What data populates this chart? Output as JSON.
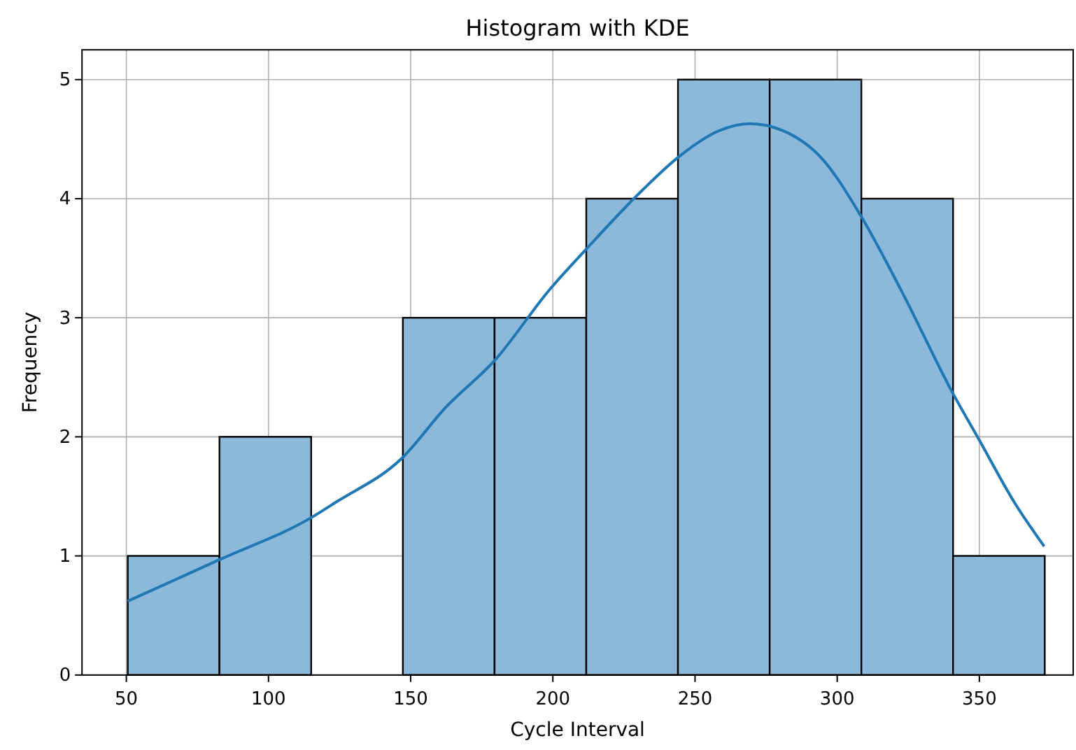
{
  "chart_data": {
    "type": "histogram",
    "title": "Histogram with KDE",
    "xlabel": "Cycle Interval",
    "ylabel": "Frequency",
    "bins": [
      50.5,
      82.75,
      115,
      147.25,
      179.5,
      211.75,
      244,
      276.25,
      308.5,
      340.75,
      373
    ],
    "series": [
      {
        "color": "#8cb8da",
        "values": [
          1,
          2,
          0,
          3,
          3,
          4,
          5,
          5,
          4,
          1
        ]
      },
      {
        "type": "line",
        "color": "#1f77b4",
        "x": [
          50.5,
          82.9,
          114.9,
          123.6,
          146.9,
          162.4,
          179.5,
          199,
          211.5,
          231,
          244.2,
          258.4,
          269.3,
          281,
          294.9,
          308.2,
          322.3,
          340.8,
          349.8,
          362.3,
          372.8
        ],
        "values": [
          0.62,
          0.97,
          1.32,
          1.45,
          1.82,
          2.25,
          2.64,
          3.24,
          3.57,
          4.06,
          4.35,
          4.57,
          4.63,
          4.57,
          4.33,
          3.86,
          3.24,
          2.36,
          1.98,
          1.45,
          1.08
        ]
      }
    ],
    "xlim": [
      34.4,
      383
    ],
    "ylim": [
      0,
      5.25
    ],
    "xticks": [
      50,
      100,
      150,
      200,
      250,
      300,
      350
    ],
    "yticks": [
      0,
      1,
      2,
      3,
      4,
      5
    ],
    "grid": true,
    "line_style": "solid",
    "marker": "none"
  }
}
